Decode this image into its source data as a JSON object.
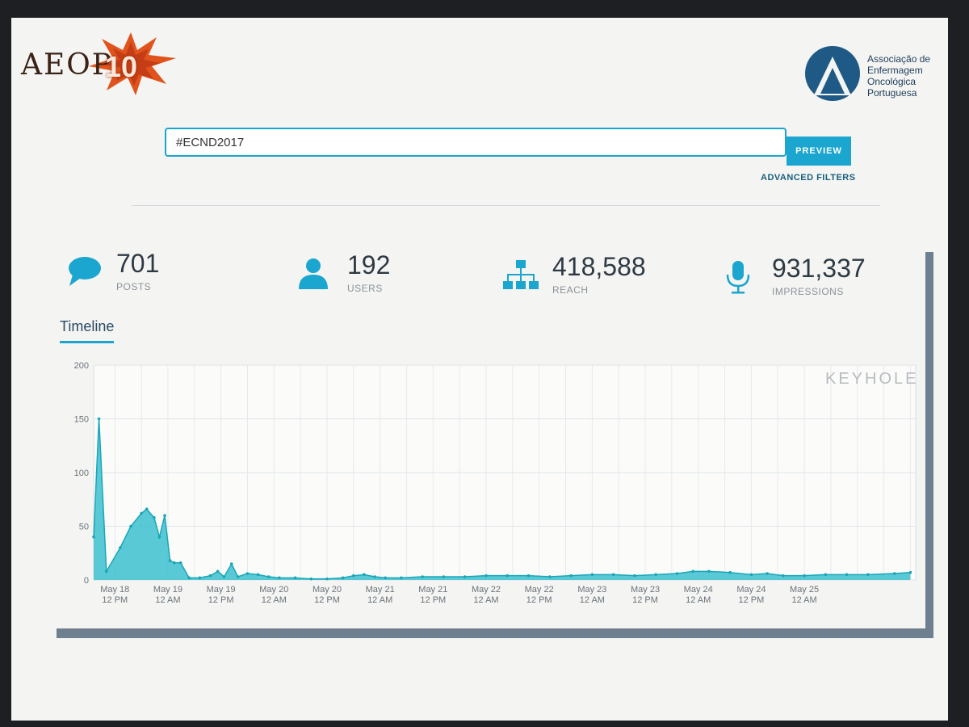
{
  "header": {
    "left_logo": {
      "text": "AEOP",
      "number": "10"
    },
    "right_logo": {
      "lines": [
        "Associação de",
        "Enfermagem",
        "Oncológica",
        "Portuguesa"
      ]
    }
  },
  "search": {
    "value": "#ECND2017",
    "button_label": "PREVIEW",
    "advanced_filters_label": "ADVANCED FILTERS"
  },
  "stats": [
    {
      "value": "701",
      "label": "POSTS",
      "icon": "chat-bubble-icon"
    },
    {
      "value": "192",
      "label": "USERS",
      "icon": "user-icon"
    },
    {
      "value": "418,588",
      "label": "REACH",
      "icon": "network-icon"
    },
    {
      "value": "931,337",
      "label": "IMPRESSIONS",
      "icon": "microphone-icon"
    }
  ],
  "tabs": {
    "timeline": "Timeline"
  },
  "watermark": "KEYHOLE",
  "colors": {
    "accent": "#1aa6cf",
    "area_fill": "#3cbfcf",
    "line": "#1aa6b8"
  },
  "chart_data": {
    "type": "area",
    "ylim": [
      0,
      200
    ],
    "yticks": [
      0,
      50,
      100,
      150,
      200
    ],
    "xlim": [
      -0.2,
      7.55
    ],
    "grid": true,
    "xticks": [
      {
        "x": 0.0,
        "line1": "May 18",
        "line2": "12 PM"
      },
      {
        "x": 0.5,
        "line1": "May 19",
        "line2": "12 AM"
      },
      {
        "x": 1.0,
        "line1": "May 19",
        "line2": "12 PM"
      },
      {
        "x": 1.5,
        "line1": "May 20",
        "line2": "12 AM"
      },
      {
        "x": 2.0,
        "line1": "May 20",
        "line2": "12 PM"
      },
      {
        "x": 2.5,
        "line1": "May 21",
        "line2": "12 AM"
      },
      {
        "x": 3.0,
        "line1": "May 21",
        "line2": "12 PM"
      },
      {
        "x": 3.5,
        "line1": "May 22",
        "line2": "12 AM"
      },
      {
        "x": 4.0,
        "line1": "May 22",
        "line2": "12 PM"
      },
      {
        "x": 4.5,
        "line1": "May 23",
        "line2": "12 AM"
      },
      {
        "x": 5.0,
        "line1": "May 23",
        "line2": "12 PM"
      },
      {
        "x": 5.5,
        "line1": "May 24",
        "line2": "12 AM"
      },
      {
        "x": 6.0,
        "line1": "May 24",
        "line2": "12 PM"
      },
      {
        "x": 6.5,
        "line1": "May 25",
        "line2": "12 AM"
      }
    ],
    "series": [
      {
        "points": [
          [
            -0.2,
            40
          ],
          [
            -0.15,
            150
          ],
          [
            -0.08,
            8
          ],
          [
            0.05,
            30
          ],
          [
            0.15,
            50
          ],
          [
            0.25,
            62
          ],
          [
            0.3,
            66
          ],
          [
            0.37,
            58
          ],
          [
            0.42,
            40
          ],
          [
            0.47,
            60
          ],
          [
            0.52,
            18
          ],
          [
            0.56,
            16
          ],
          [
            0.62,
            16
          ],
          [
            0.7,
            2
          ],
          [
            0.8,
            2
          ],
          [
            0.9,
            4
          ],
          [
            0.97,
            8
          ],
          [
            1.03,
            3
          ],
          [
            1.1,
            15
          ],
          [
            1.16,
            3
          ],
          [
            1.25,
            6
          ],
          [
            1.35,
            5
          ],
          [
            1.45,
            3
          ],
          [
            1.55,
            2
          ],
          [
            1.7,
            2
          ],
          [
            1.85,
            1
          ],
          [
            2.0,
            1
          ],
          [
            2.15,
            2
          ],
          [
            2.25,
            4
          ],
          [
            2.35,
            5
          ],
          [
            2.45,
            3
          ],
          [
            2.55,
            2
          ],
          [
            2.7,
            2
          ],
          [
            2.9,
            3
          ],
          [
            3.1,
            3
          ],
          [
            3.3,
            3
          ],
          [
            3.5,
            4
          ],
          [
            3.7,
            4
          ],
          [
            3.9,
            4
          ],
          [
            4.1,
            3
          ],
          [
            4.3,
            4
          ],
          [
            4.5,
            5
          ],
          [
            4.7,
            5
          ],
          [
            4.9,
            4
          ],
          [
            5.1,
            5
          ],
          [
            5.3,
            6
          ],
          [
            5.45,
            8
          ],
          [
            5.6,
            8
          ],
          [
            5.8,
            7
          ],
          [
            6.0,
            5
          ],
          [
            6.15,
            6
          ],
          [
            6.3,
            4
          ],
          [
            6.5,
            4
          ],
          [
            6.7,
            5
          ],
          [
            6.9,
            5
          ],
          [
            7.1,
            5
          ],
          [
            7.35,
            6
          ],
          [
            7.5,
            7
          ]
        ]
      }
    ]
  }
}
